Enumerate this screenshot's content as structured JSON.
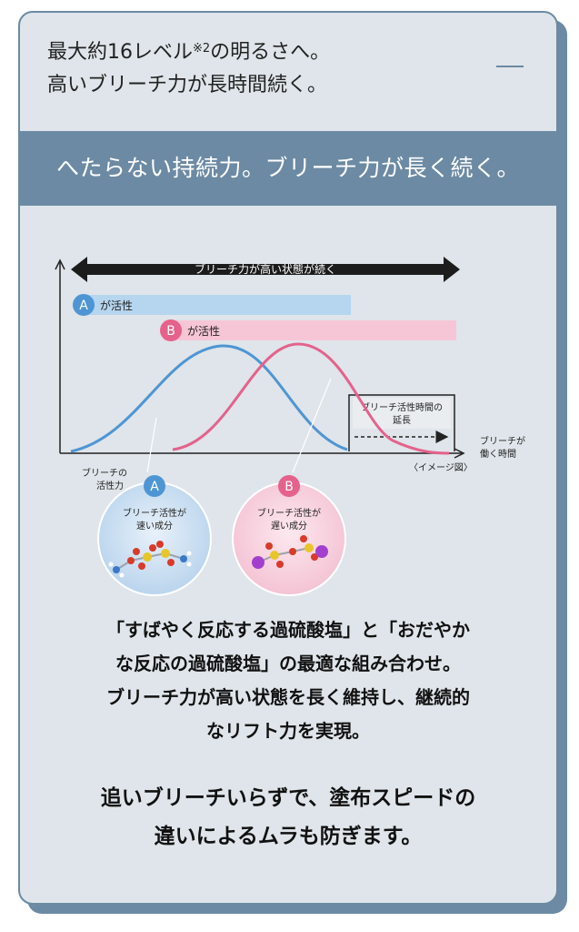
{
  "header": {
    "line1_main": "最大約16レベル",
    "line1_sup": "※2",
    "line1_end": "の明るさへ。",
    "line2": "高いブリーチ力が長時間続く。"
  },
  "band": {
    "title": "へたらない持続力。ブリーチ力が長く続く。"
  },
  "diagram": {
    "arrow_label": "ブリーチ力が高い状態が続く",
    "bar_a_letter": "A",
    "bar_a_label": "が活性",
    "bar_b_letter": "B",
    "bar_b_label": "が活性",
    "extension_label_1": "ブリーチ活性時間の",
    "extension_label_2": "延長",
    "x_label_1": "ブリーチが",
    "x_label_2": "働く時間",
    "y_label_1": "ブリーチの",
    "y_label_2": "活性力",
    "image_note": "〈イメージ図〉",
    "circle_a_letter": "A",
    "circle_a_text_1": "ブリーチ活性が",
    "circle_a_text_2": "速い成分",
    "circle_b_letter": "B",
    "circle_b_text_1": "ブリーチ活性が",
    "circle_b_text_2": "遅い成分",
    "colors": {
      "a": "#4f95d3",
      "b": "#e4628c",
      "a_light": "#b6d5ef",
      "b_light": "#f6c6d6"
    }
  },
  "body": {
    "para1": [
      "「すばやく反応する過硫酸塩」と「おだやか",
      "な反応の過硫酸塩」の最適な組み合わせ。",
      "ブリーチ力が高い状態を長く維持し、継続的",
      "なリフト力を実現。"
    ],
    "para2": [
      "追いブリーチいらずで、塗布スピードの",
      "違いによるムラも防ぎます。"
    ]
  }
}
